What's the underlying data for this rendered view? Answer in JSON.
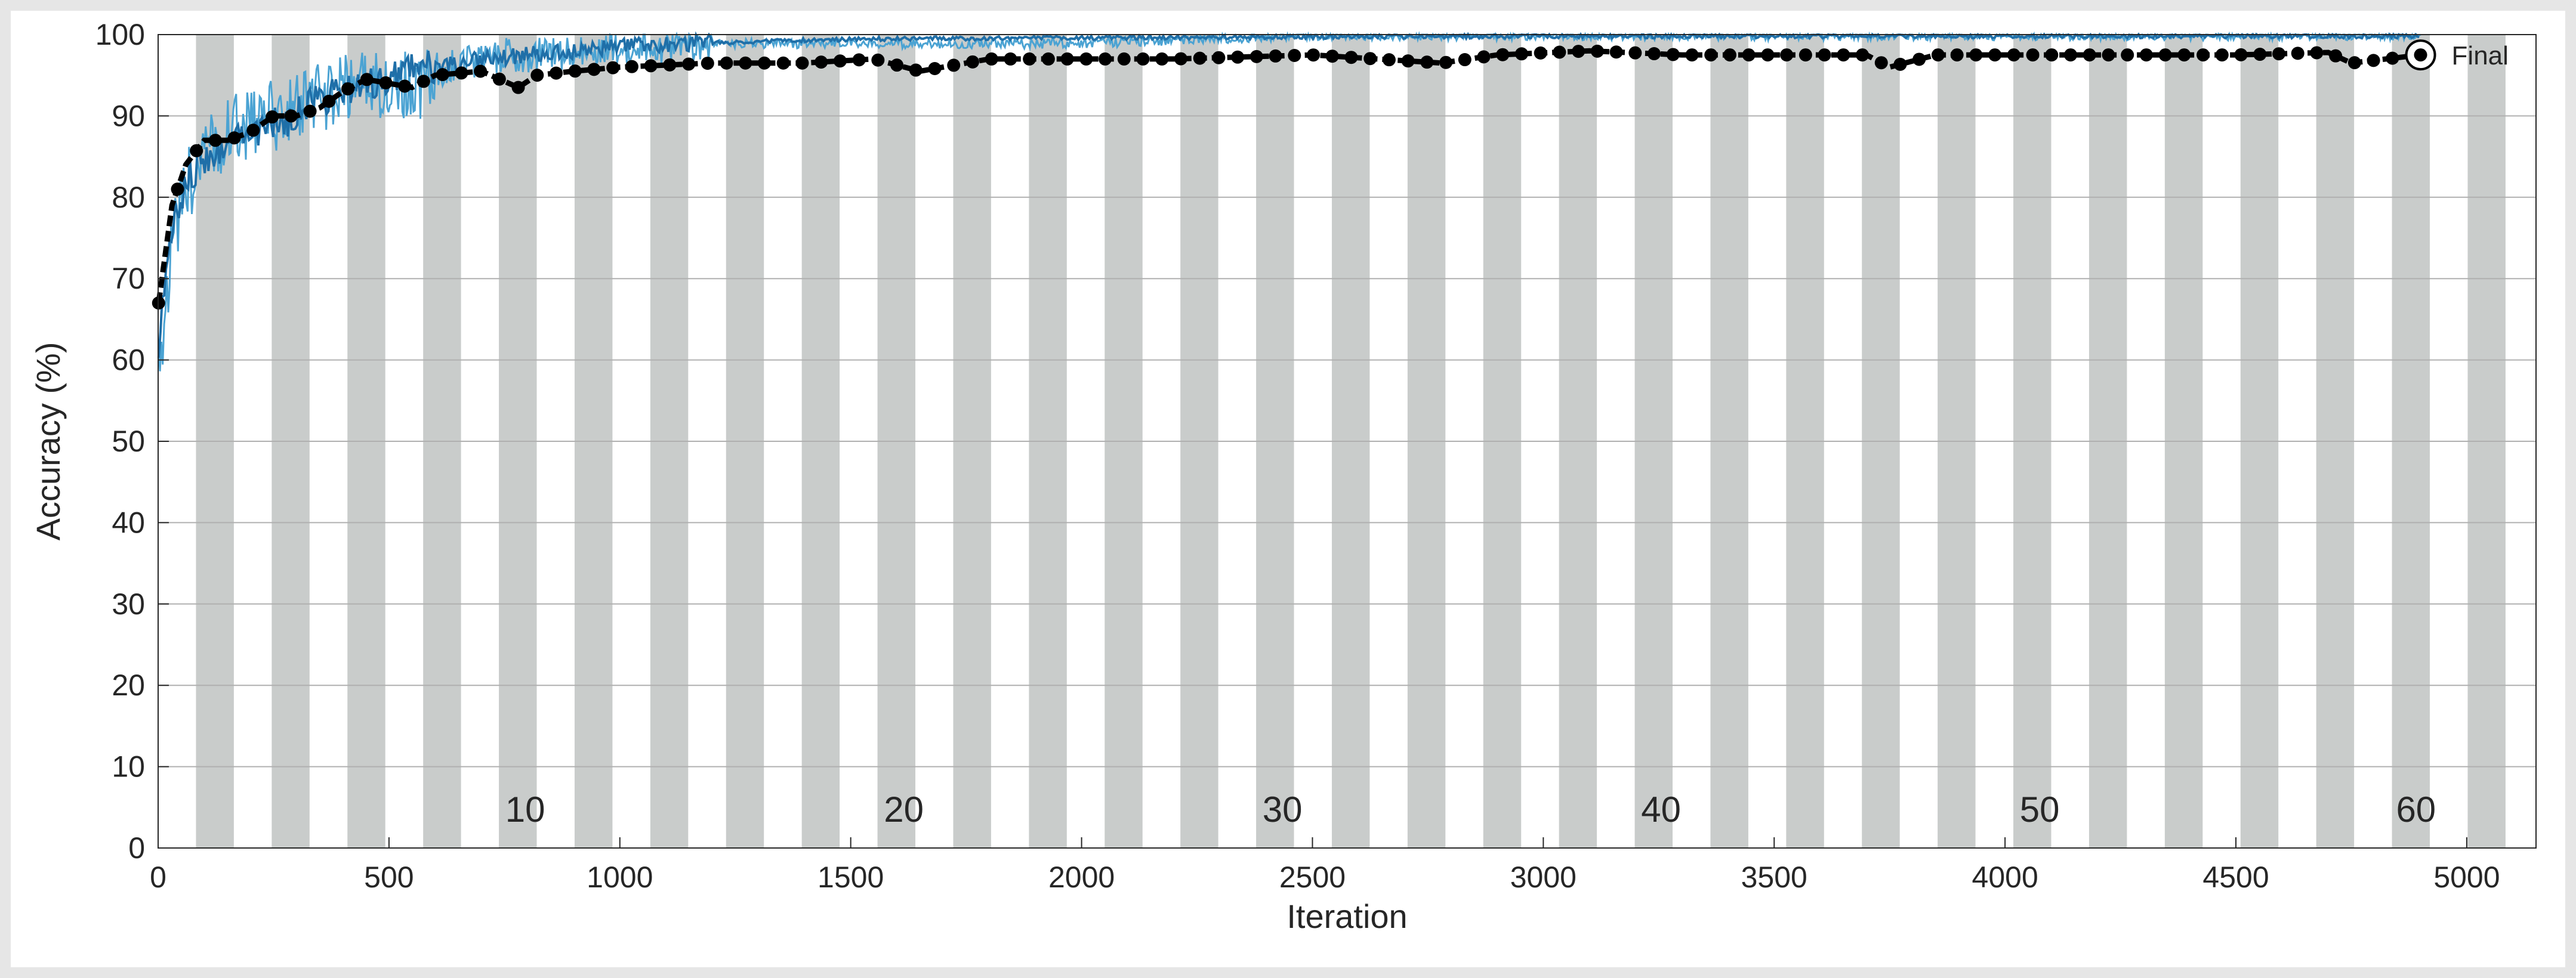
{
  "chart_data": {
    "type": "line",
    "xlabel": "Iteration",
    "ylabel": "Accuracy (%)",
    "xlim": [
      0,
      5150
    ],
    "ylim": [
      0,
      100
    ],
    "x_ticks": [
      0,
      500,
      1000,
      1500,
      2000,
      2500,
      3000,
      3500,
      4000,
      4500,
      5000
    ],
    "y_ticks": [
      0,
      10,
      20,
      30,
      40,
      50,
      60,
      70,
      80,
      90,
      100
    ],
    "grid": true,
    "iterations_per_epoch": 82,
    "total_iterations": 4900,
    "epoch_labels": [
      {
        "epoch": 10,
        "x": 795
      },
      {
        "epoch": 20,
        "x": 1615
      },
      {
        "epoch": 30,
        "x": 2435
      },
      {
        "epoch": 40,
        "x": 3255
      },
      {
        "epoch": 50,
        "x": 4075
      },
      {
        "epoch": 60,
        "x": 4890
      }
    ],
    "series": [
      {
        "role": "training-accuracy-raw",
        "color": "#4ba3d3",
        "x": [
          1,
          30,
          60,
          100,
          150,
          200,
          250,
          300,
          350,
          400,
          450,
          500,
          550,
          600,
          650,
          700,
          750,
          800,
          900,
          1000,
          1100,
          1200,
          1400,
          1600,
          1800,
          2000,
          2500,
          3000,
          3500,
          4000,
          4500,
          4900
        ],
        "values": [
          60,
          75,
          82,
          86,
          89,
          90,
          91,
          92,
          93,
          94,
          95,
          95,
          94,
          96,
          97,
          97,
          98,
          98,
          98,
          99,
          99,
          99,
          99,
          99,
          99,
          99,
          100,
          100,
          100,
          100,
          100,
          100
        ]
      },
      {
        "role": "training-accuracy-smoothed",
        "color": "#1f6fa8",
        "x": [
          1,
          30,
          60,
          100,
          150,
          200,
          250,
          300,
          350,
          400,
          450,
          500,
          600,
          700,
          800,
          900,
          1000,
          1200,
          1400,
          1600,
          2000,
          2500,
          3000,
          3500,
          4000,
          4500,
          4900
        ],
        "values": [
          62,
          76,
          82,
          85,
          87,
          88,
          89,
          90,
          92,
          93,
          94,
          95,
          96,
          97,
          97.5,
          98,
          98.5,
          99,
          99.3,
          99.5,
          99.6,
          99.7,
          99.8,
          99.8,
          99.8,
          99.8,
          99.8
        ]
      },
      {
        "role": "validation-accuracy",
        "color": "#000000",
        "x": [
          1,
          30,
          60,
          100,
          150,
          200,
          250,
          300,
          350,
          400,
          450,
          500,
          550,
          600,
          700,
          780,
          820,
          900,
          1000,
          1200,
          1400,
          1550,
          1650,
          1800,
          2000,
          2200,
          2500,
          2780,
          2900,
          3100,
          3300,
          3500,
          3700,
          3750,
          3850,
          4000,
          4300,
          4500,
          4700,
          4750,
          4900
        ],
        "values": [
          67,
          79,
          84,
          87,
          87,
          88,
          90,
          90,
          91,
          93,
          94.5,
          94,
          93.5,
          95,
          95.5,
          93.5,
          95,
          95.5,
          96,
          96.5,
          96.5,
          97,
          95.5,
          97,
          97,
          97,
          97.5,
          96.5,
          97.5,
          98,
          97.5,
          97.5,
          97.5,
          96,
          97.5,
          97.5,
          97.5,
          97.5,
          97.8,
          96.5,
          97.5
        ]
      }
    ],
    "annotations": [
      {
        "text": "Final",
        "x": 4900,
        "y": 97.5
      }
    ]
  },
  "colors": {
    "figure_background": "#e6e6e6",
    "plot_background": "#ffffff",
    "epoch_band": "#c9cccb",
    "grid": "#b0b0b0",
    "axis": "#262626"
  }
}
